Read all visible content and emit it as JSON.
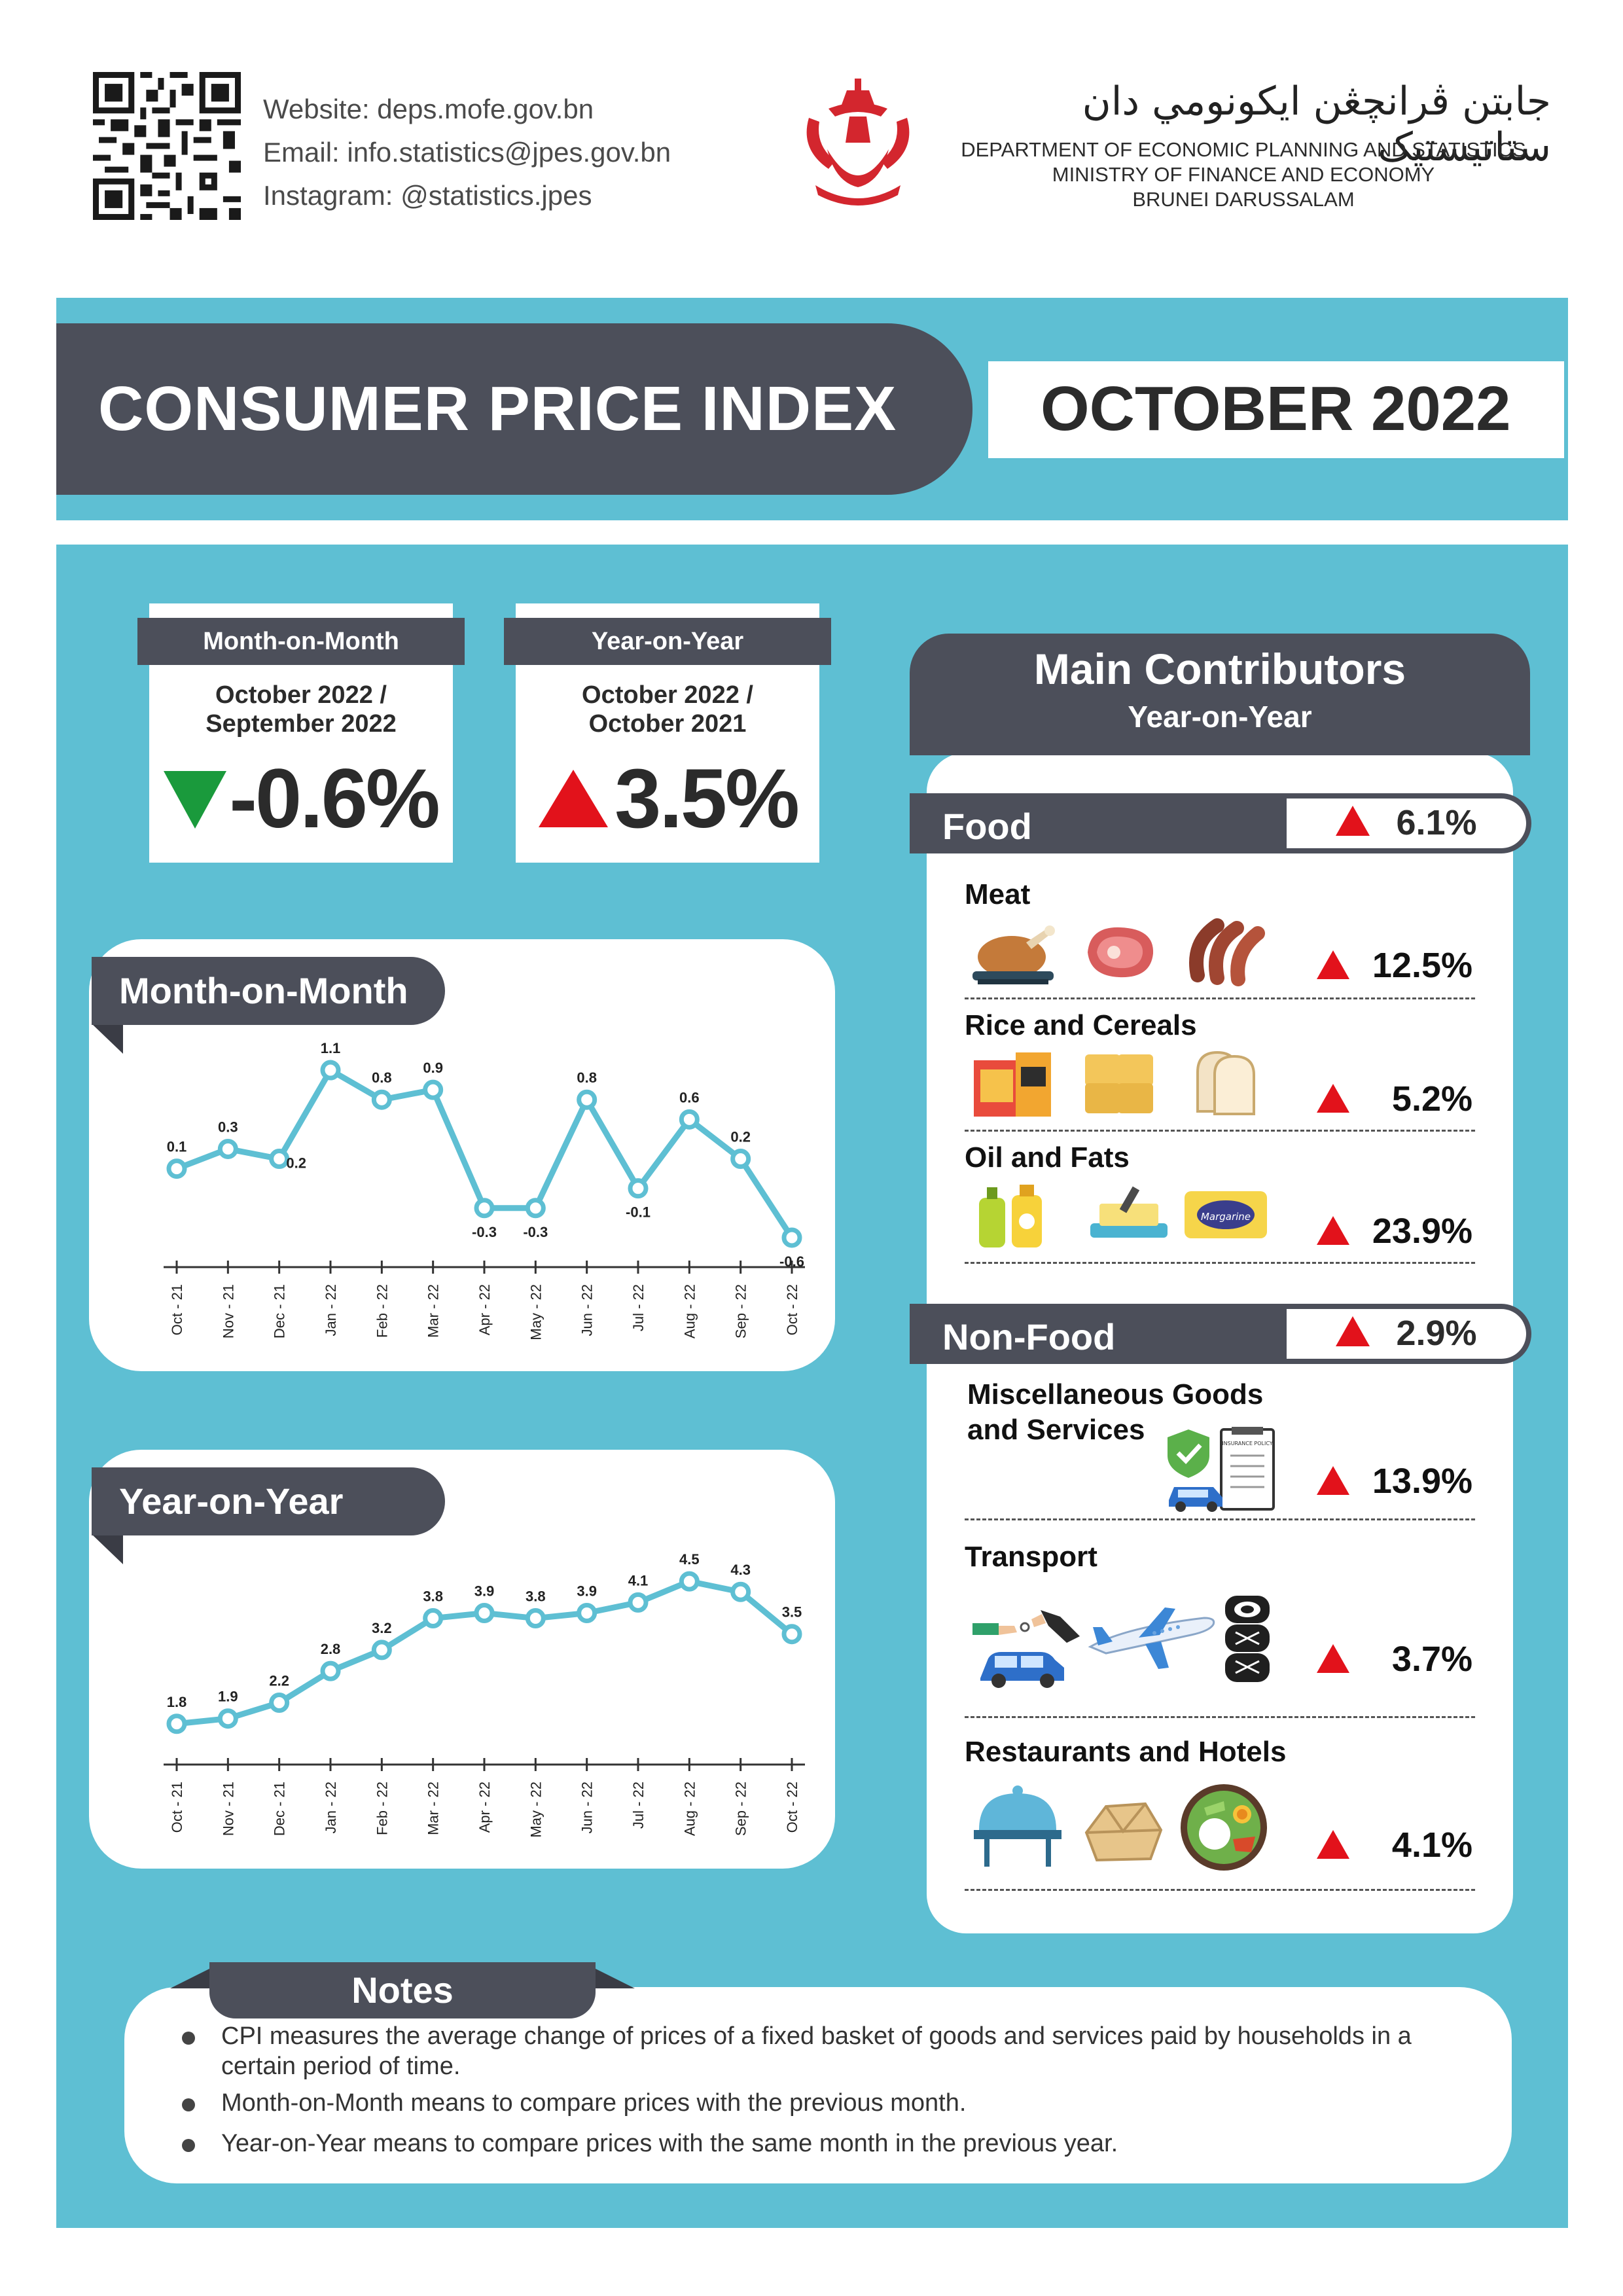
{
  "header": {
    "contact": [
      "Website: deps.mofe.gov.bn",
      "Email: info.statistics@jpes.gov.bn",
      "Instagram: @statistics.jpes"
    ],
    "dept_jawi": "جابتن ڤرانچڠن ايكونومي دان ستاتيستيک",
    "dept_lines": [
      "DEPARTMENT OF ECONOMIC PLANNING AND STATISTICS",
      "MINISTRY OF FINANCE AND ECONOMY",
      "BRUNEI DARUSSALAM"
    ]
  },
  "title": {
    "main": "CONSUMER PRICE INDEX",
    "period": "OCTOBER 2022"
  },
  "kpis": {
    "mom": {
      "head": "Month-on-Month",
      "period1": "October 2022 /",
      "period2": "September 2022",
      "value": "-0.6%",
      "direction": "down",
      "color": "#1a9a3c"
    },
    "yoy": {
      "head": "Year-on-Year",
      "period1": "October 2022 /",
      "period2": "October 2021",
      "value": "3.5%",
      "direction": "up",
      "color": "#e2121b"
    }
  },
  "chart_labels": {
    "mom": "Month-on-Month",
    "yoy": "Year-on-Year"
  },
  "chart_data": [
    {
      "type": "line",
      "title": "Month-on-Month",
      "categories": [
        "Oct - 21",
        "Nov - 21",
        "Dec - 21",
        "Jan - 22",
        "Feb - 22",
        "Mar - 22",
        "Apr - 22",
        "May - 22",
        "Jun - 22",
        "Jul - 22",
        "Aug - 22",
        "Sep - 22",
        "Oct - 22"
      ],
      "values": [
        0.1,
        0.3,
        0.2,
        1.1,
        0.8,
        0.9,
        -0.3,
        -0.3,
        0.8,
        -0.1,
        0.6,
        0.2,
        -0.6
      ],
      "ylim": [
        -0.7,
        1.2
      ],
      "color": "#5ebfd3"
    },
    {
      "type": "line",
      "title": "Year-on-Year",
      "categories": [
        "Oct - 21",
        "Nov - 21",
        "Dec - 21",
        "Jan - 22",
        "Feb - 22",
        "Mar - 22",
        "Apr - 22",
        "May - 22",
        "Jun - 22",
        "Jul - 22",
        "Aug - 22",
        "Sep - 22",
        "Oct - 22"
      ],
      "values": [
        1.8,
        1.9,
        2.2,
        2.8,
        3.2,
        3.8,
        3.9,
        3.8,
        3.9,
        4.1,
        4.5,
        4.3,
        3.5
      ],
      "ylim": [
        1.4,
        4.7
      ],
      "color": "#5ebfd3"
    }
  ],
  "contributors": {
    "title": "Main Contributors",
    "subtitle": "Year-on-Year",
    "food": {
      "name": "Food",
      "value": "6.1%",
      "items": [
        {
          "label": "Meat",
          "value": "12.5%"
        },
        {
          "label": "Rice and Cereals",
          "value": "5.2%"
        },
        {
          "label": "Oil and Fats",
          "value": "23.9%"
        }
      ]
    },
    "nonfood": {
      "name": "Non-Food",
      "value": "2.9%",
      "items": [
        {
          "label1": "Miscellaneous Goods",
          "label2": "and Services",
          "value": "13.9%"
        },
        {
          "label": "Transport",
          "value": "3.7%"
        },
        {
          "label": "Restaurants and Hotels",
          "value": "4.1%"
        }
      ]
    },
    "insurance_text": "INSURANCE POLICY",
    "margarine_text": "Margarine"
  },
  "notes": {
    "title": "Notes",
    "items": [
      "CPI measures the average change of prices of a fixed basket of goods and services paid by households in a",
      "certain period of time.",
      "Month-on-Month means to compare prices with the previous month.",
      "Year-on-Year means to compare prices with the same month in the previous year."
    ]
  }
}
